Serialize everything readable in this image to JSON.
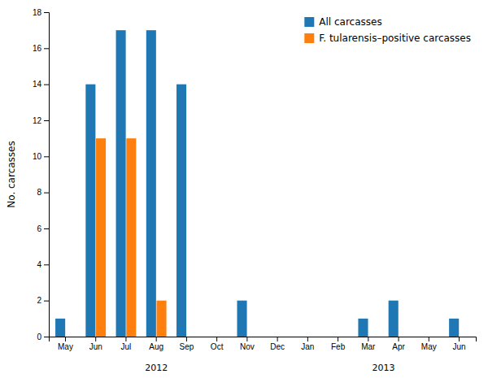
{
  "chart_data": {
    "type": "bar",
    "categories": [
      "May",
      "Jun",
      "Jul",
      "Aug",
      "Sep",
      "Oct",
      "Nov",
      "Dec",
      "Jan",
      "Feb",
      "Mar",
      "Apr",
      "May",
      "Jun"
    ],
    "series": [
      {
        "name": "All carcasses",
        "values": [
          1,
          14,
          17,
          17,
          14,
          0,
          2,
          0,
          0,
          0,
          1,
          2,
          0,
          1
        ]
      },
      {
        "name": "F. tularensis–positive carcasses",
        "values": [
          0,
          11,
          11,
          2,
          0,
          0,
          0,
          0,
          0,
          0,
          0,
          0,
          0,
          0
        ]
      }
    ],
    "y_label": "No. carcasses",
    "ylim": [
      0,
      18
    ],
    "yticks": [
      0,
      2,
      4,
      6,
      8,
      10,
      12,
      14,
      16,
      18
    ],
    "legend": "upper right",
    "annotations": [
      {
        "text": "2012",
        "x": 3
      },
      {
        "text": "2013",
        "x": 10.5
      }
    ]
  }
}
